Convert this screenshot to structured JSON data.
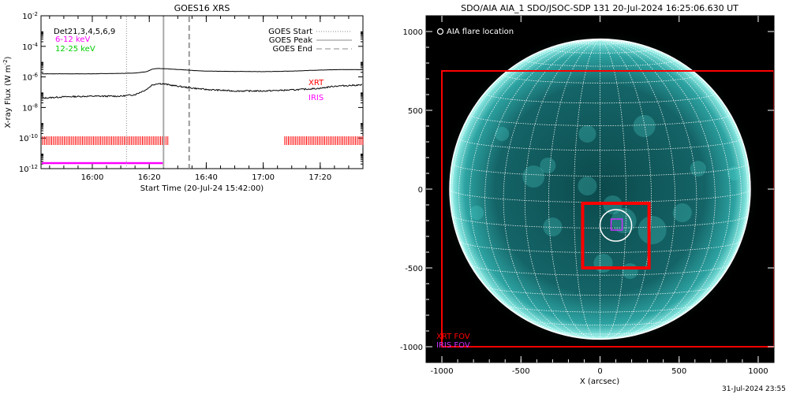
{
  "goes_panel": {
    "title": "GOES16 XRS",
    "ylabel": "X-ray Flux (W m",
    "ylabel_sup": "-2",
    "ylabel_close": ")",
    "xlabel": "Start Time (20-Jul-24 15:42:00)",
    "det_label": "Det21,3,4,5,6,9",
    "band_low_label": "6-12 keV",
    "band_high_label": "12-25 keV",
    "legend": {
      "start": "GOES Start",
      "peak": "GOES Peak",
      "end": "GOES End"
    },
    "xrt_label": "XRT",
    "iris_label": "IRIS",
    "colors": {
      "low_band": "#ff00ff",
      "high_band": "#00cc00",
      "xrt": "#ff0000",
      "iris": "#ff00ff"
    }
  },
  "aia_panel": {
    "title": "SDO/AIA AIA_1 SDO/JSOC-SDP 131 20-Jul-2024 16:25:06.630 UT",
    "legend_circle": "AIA flare location",
    "xlabel": "X (arcsec)",
    "xrt_fov_label": "XRT FOV",
    "iris_fov_label": "IRIS FOV",
    "colors": {
      "xrt": "#ff0000",
      "iris": "#cc33ff",
      "disk": "#1a9e9e"
    }
  },
  "footer_timestamp": "31-Jul-2024 23:55",
  "chart_data": [
    {
      "type": "line",
      "title": "GOES16 XRS",
      "xlabel": "Start Time (20-Jul-24 15:42:00)",
      "ylabel": "X-ray Flux (W m^-2)",
      "yscale": "log",
      "xlim": [
        "15:42",
        "17:35"
      ],
      "ylim": [
        1e-12,
        0.01
      ],
      "x_ticks": [
        "16:00",
        "16:20",
        "16:40",
        "17:00",
        "17:20"
      ],
      "y_ticks": [
        "10^-12",
        "10^-10",
        "10^-8",
        "10^-6",
        "10^-4",
        "10^-2"
      ],
      "series": [
        {
          "name": "6-12 keV",
          "x": [
            "15:42",
            "15:50",
            "16:00",
            "16:10",
            "16:15",
            "16:19",
            "16:21",
            "16:23",
            "16:25",
            "16:28",
            "16:32",
            "16:36",
            "16:40",
            "16:50",
            "17:00",
            "17:10",
            "17:20",
            "17:25",
            "17:35"
          ],
          "y": [
            1.6e-06,
            1.6e-06,
            1.6e-06,
            1.7e-06,
            1.8e-06,
            2.2e-06,
            3.2e-06,
            3.6e-06,
            3.5e-06,
            3.2e-06,
            2.9e-06,
            2.6e-06,
            2.4e-06,
            2.3e-06,
            2.2e-06,
            2.4e-06,
            2.8e-06,
            3e-06,
            3e-06
          ]
        },
        {
          "name": "12-25 keV",
          "x": [
            "15:42",
            "15:50",
            "16:00",
            "16:10",
            "16:15",
            "16:19",
            "16:21",
            "16:23",
            "16:25",
            "16:28",
            "16:32",
            "16:36",
            "16:40",
            "16:50",
            "17:00",
            "17:10",
            "17:20",
            "17:25",
            "17:35"
          ],
          "y": [
            4e-08,
            5e-08,
            5.5e-08,
            5.5e-08,
            7e-08,
            1.5e-07,
            3e-07,
            3.7e-07,
            3.5e-07,
            2.8e-07,
            2.2e-07,
            1.8e-07,
            1.5e-07,
            1.2e-07,
            1.2e-07,
            1.4e-07,
            1.8e-07,
            2.5e-07,
            3e-07
          ]
        }
      ],
      "events": {
        "goes_start": "16:12",
        "goes_peak": "16:25",
        "goes_end": "16:34"
      },
      "xrt_coverage": [
        [
          "15:42",
          "16:27"
        ],
        [
          "17:07",
          "17:35"
        ]
      ],
      "iris_coverage": [
        [
          "15:42",
          "16:25"
        ]
      ]
    },
    {
      "type": "scatter",
      "title": "SDO/AIA AIA_1 SDO/JSOC-SDP 131 20-Jul-2024 16:25:06.630 UT",
      "xlabel": "X (arcsec)",
      "xlim": [
        -1100,
        1100
      ],
      "ylim": [
        -1100,
        1100
      ],
      "x_ticks": [
        -1000,
        -500,
        0,
        500,
        1000
      ],
      "y_ticks": [
        -1000,
        -500,
        0,
        500,
        1000
      ],
      "solar_radius": 950,
      "flare_location": [
        100,
        -230
      ],
      "flare_circle_radius": 100,
      "xrt_fov_large": [
        -1000,
        -1000,
        1100,
        750
      ],
      "xrt_fov_small": [
        -110,
        -500,
        310,
        -90
      ],
      "iris_fov": [
        70,
        -260,
        140,
        -190
      ]
    }
  ]
}
